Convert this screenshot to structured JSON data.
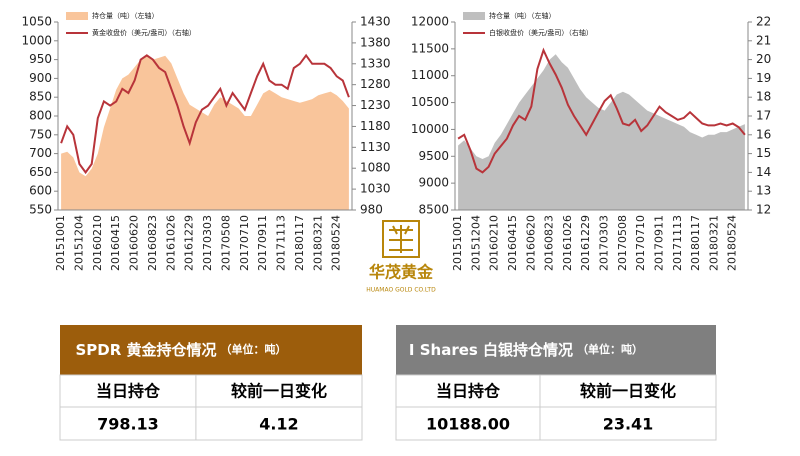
{
  "chart_data": [
    {
      "type": "area_line",
      "categories": [
        "20151001",
        null,
        null,
        "20151204",
        null,
        null,
        "20160210",
        null,
        null,
        "20160415",
        null,
        null,
        "20160620",
        null,
        null,
        "20160823",
        null,
        null,
        "20161026",
        null,
        null,
        "20161229",
        null,
        null,
        "20170303",
        null,
        null,
        "20170508",
        null,
        null,
        "20170710",
        null,
        null,
        "20170911",
        null,
        null,
        "20171113",
        null,
        null,
        "20180117",
        null,
        null,
        "20180321",
        null,
        null,
        "20180524",
        null,
        null
      ],
      "series": [
        {
          "name": "持仓量（吨）（左轴）",
          "type": "area",
          "color": "#f9c59b",
          "values": [
            700,
            705,
            690,
            650,
            640,
            660,
            700,
            770,
            820,
            870,
            900,
            910,
            930,
            950,
            960,
            950,
            955,
            960,
            940,
            900,
            860,
            830,
            820,
            810,
            800,
            830,
            850,
            840,
            830,
            820,
            800,
            800,
            830,
            860,
            870,
            860,
            850,
            845,
            840,
            835,
            840,
            845,
            855,
            860,
            865,
            855,
            840,
            820
          ]
        },
        {
          "name": "黄金收盘价（美元/盎司）（右轴）",
          "type": "line",
          "axis": "y2",
          "color": "#b8343a",
          "values": [
            1140,
            1180,
            1160,
            1090,
            1070,
            1090,
            1200,
            1240,
            1230,
            1240,
            1270,
            1260,
            1290,
            1340,
            1350,
            1340,
            1320,
            1310,
            1270,
            1230,
            1180,
            1140,
            1190,
            1220,
            1230,
            1250,
            1270,
            1230,
            1260,
            1240,
            1220,
            1260,
            1300,
            1330,
            1290,
            1280,
            1280,
            1270,
            1320,
            1330,
            1350,
            1330,
            1330,
            1330,
            1320,
            1300,
            1290,
            1250
          ]
        }
      ],
      "ylim": [
        550,
        1050
      ],
      "yticks": [
        550,
        600,
        650,
        700,
        750,
        800,
        850,
        900,
        950,
        1000,
        1050
      ],
      "y2lim": [
        980,
        1430
      ],
      "y2ticks": [
        980,
        1030,
        1080,
        1130,
        1180,
        1230,
        1280,
        1330,
        1380,
        1430
      ],
      "legend": "upper left"
    },
    {
      "type": "area_line",
      "categories": [
        "20151001",
        null,
        null,
        "20151204",
        null,
        null,
        "20160210",
        null,
        null,
        "20160415",
        null,
        null,
        "20160620",
        null,
        null,
        "20160823",
        null,
        null,
        "20161026",
        null,
        null,
        "20161229",
        null,
        null,
        "20170303",
        null,
        null,
        "20170508",
        null,
        null,
        "20170710",
        null,
        null,
        "20170911",
        null,
        null,
        "20171113",
        null,
        null,
        "20180117",
        null,
        null,
        "20180321",
        null,
        null,
        "20180524",
        null,
        null
      ],
      "series": [
        {
          "name": "持仓量（吨）（左轴）",
          "type": "area",
          "color": "#bfbfbf",
          "values": [
            9700,
            9800,
            9650,
            9500,
            9450,
            9500,
            9750,
            9900,
            10100,
            10300,
            10500,
            10650,
            10800,
            10950,
            11100,
            11300,
            11400,
            11250,
            11150,
            10950,
            10750,
            10600,
            10500,
            10400,
            10350,
            10500,
            10650,
            10700,
            10650,
            10550,
            10450,
            10350,
            10300,
            10250,
            10200,
            10150,
            10100,
            10050,
            9950,
            9900,
            9850,
            9900,
            9900,
            9950,
            9950,
            10000,
            10050,
            10100
          ]
        },
        {
          "name": "白银收盘价（美元/盎司）（右轴）",
          "type": "line",
          "axis": "y2",
          "color": "#b8343a",
          "values": [
            15.8,
            16.0,
            15.2,
            14.2,
            14.0,
            14.3,
            15.0,
            15.4,
            15.8,
            16.5,
            17.0,
            16.8,
            17.5,
            19.5,
            20.5,
            19.8,
            19.2,
            18.5,
            17.6,
            17.0,
            16.5,
            16.0,
            16.6,
            17.2,
            17.8,
            18.1,
            17.4,
            16.6,
            16.5,
            16.8,
            16.2,
            16.5,
            17.0,
            17.5,
            17.2,
            17.0,
            16.8,
            16.9,
            17.2,
            16.9,
            16.6,
            16.5,
            16.5,
            16.6,
            16.5,
            16.6,
            16.4,
            16.0
          ]
        }
      ],
      "ylim": [
        8500,
        12000
      ],
      "yticks": [
        8500,
        9000,
        9500,
        10000,
        10500,
        11000,
        11500,
        12000
      ],
      "y2lim": [
        12,
        22
      ],
      "y2ticks": [
        12,
        13,
        14,
        15,
        16,
        17,
        18,
        19,
        20,
        21,
        22
      ],
      "legend": "upper left"
    }
  ],
  "logo": {
    "name": "华茂黄金",
    "subtitle": "HUAMAO GOLD CO.LTD"
  },
  "tables": [
    {
      "title": "SPDR 黄金持仓情况",
      "unit": "（单位：吨）",
      "columns": [
        "当日持仓",
        "较前一日变化"
      ],
      "values": [
        "798.13",
        "4.12"
      ]
    },
    {
      "title": "I Shares 白银持仓情况",
      "unit": "（单位：吨）",
      "columns": [
        "当日持仓",
        "较前一日变化"
      ],
      "values": [
        "10188.00",
        "23.41"
      ]
    }
  ]
}
